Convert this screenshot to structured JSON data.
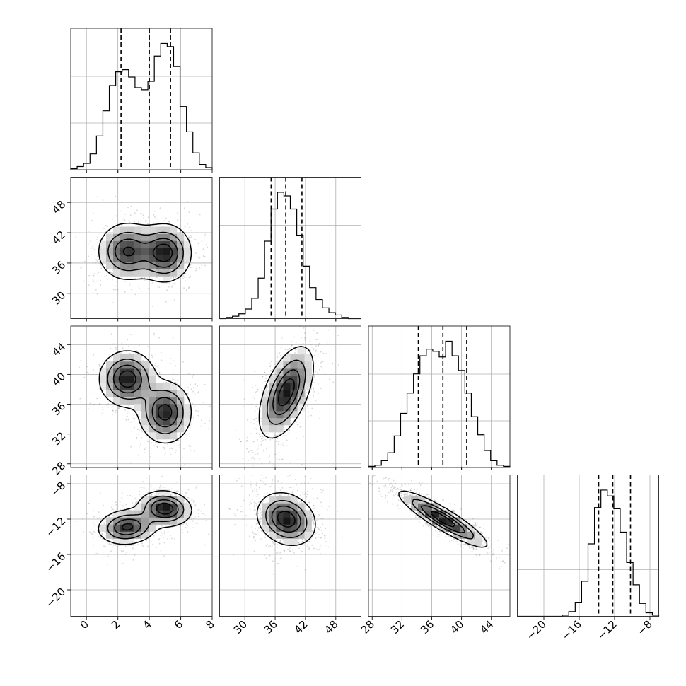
{
  "chart_data": {
    "type": "corner",
    "title": "",
    "colors": {
      "hist": "#000000",
      "scatter": "#8c8c8c",
      "contour": "#000000",
      "grid": "#b0b0b0",
      "axis": "#222222"
    },
    "grid": true,
    "params": [
      {
        "index": 0,
        "range": [
          -1,
          8
        ],
        "ticks": [
          0,
          2,
          4,
          6,
          8
        ],
        "tick_labels": [
          "0",
          "2",
          "4",
          "6",
          "8"
        ],
        "quantiles": [
          2.2,
          4.0,
          5.35
        ],
        "modes": [
          [
            2.6,
            0.9
          ],
          [
            5.0,
            0.8
          ]
        ]
      },
      {
        "index": 1,
        "range": [
          25,
          53
        ],
        "ticks": [
          30,
          36,
          42,
          48
        ],
        "tick_labels": [
          "30",
          "36",
          "42",
          "48"
        ],
        "quantiles": [
          35.2,
          38.1,
          41.3
        ],
        "modes": [
          [
            38.1,
            2.8
          ]
        ]
      },
      {
        "index": 2,
        "range": [
          27.5,
          46.5
        ],
        "ticks": [
          28,
          32,
          36,
          40,
          44
        ],
        "tick_labels": [
          "28",
          "32",
          "36",
          "40",
          "44"
        ],
        "quantiles": [
          34.2,
          37.5,
          40.7
        ],
        "modes": [
          [
            37.4,
            3.0
          ]
        ]
      },
      {
        "index": 3,
        "range": [
          -23,
          -7
        ],
        "ticks": [
          -20,
          -16,
          -12,
          -8
        ],
        "tick_labels": [
          "−20",
          "−16",
          "−12",
          "−8"
        ],
        "quantiles": [
          -13.8,
          -12.2,
          -10.2
        ],
        "modes": [
          [
            -12.0,
            1.6
          ]
        ]
      }
    ],
    "histograms": [
      {
        "param": 0,
        "bins": 22,
        "values": [
          0.01,
          0.03,
          0.06,
          0.15,
          0.32,
          0.56,
          0.8,
          0.93,
          0.95,
          0.88,
          0.78,
          0.76,
          0.84,
          1.08,
          1.2,
          1.17,
          0.98,
          0.6,
          0.36,
          0.16,
          0.05,
          0.02
        ]
      },
      {
        "param": 1,
        "bins": 22,
        "values": [
          0.0,
          0.01,
          0.02,
          0.04,
          0.08,
          0.17,
          0.34,
          0.65,
          0.92,
          1.06,
          1.03,
          0.92,
          0.7,
          0.44,
          0.26,
          0.16,
          0.09,
          0.05,
          0.03,
          0.01,
          0.0,
          0.0
        ]
      },
      {
        "param": 2,
        "bins": 22,
        "values": [
          0.01,
          0.02,
          0.06,
          0.13,
          0.28,
          0.48,
          0.66,
          0.83,
          0.99,
          1.05,
          1.03,
          0.98,
          1.12,
          0.99,
          0.86,
          0.66,
          0.45,
          0.29,
          0.15,
          0.06,
          0.02,
          0.01
        ]
      },
      {
        "param": 3,
        "bins": 22,
        "values": [
          0.0,
          0.0,
          0.0,
          0.0,
          0.0,
          0.0,
          0.0,
          0.01,
          0.04,
          0.12,
          0.3,
          0.62,
          0.93,
          1.08,
          1.03,
          0.92,
          0.72,
          0.46,
          0.27,
          0.11,
          0.03,
          0.01
        ]
      }
    ],
    "pairs": [
      {
        "x": 0,
        "y": 1,
        "clusters": [
          {
            "mx": 2.6,
            "my": 38.3,
            "sx": 0.95,
            "sy": 2.9,
            "rho": 0.0,
            "w": 0.5
          },
          {
            "mx": 5.0,
            "my": 38.0,
            "sx": 0.85,
            "sy": 2.9,
            "rho": 0.0,
            "w": 0.5
          }
        ]
      },
      {
        "x": 0,
        "y": 2,
        "clusters": [
          {
            "mx": 2.6,
            "my": 39.4,
            "sx": 0.9,
            "sy": 1.9,
            "rho": 0.0,
            "w": 0.5
          },
          {
            "mx": 5.0,
            "my": 34.9,
            "sx": 0.85,
            "sy": 2.1,
            "rho": 0.0,
            "w": 0.5
          }
        ]
      },
      {
        "x": 0,
        "y": 3,
        "clusters": [
          {
            "mx": 2.6,
            "my": -12.9,
            "sx": 0.95,
            "sy": 1.0,
            "rho": 0.1,
            "w": 0.5
          },
          {
            "mx": 5.0,
            "my": -10.8,
            "sx": 0.85,
            "sy": 1.0,
            "rho": -0.1,
            "w": 0.5
          }
        ]
      },
      {
        "x": 1,
        "y": 2,
        "clusters": [
          {
            "mx": 38.2,
            "my": 37.6,
            "sx": 2.7,
            "sy": 3.1,
            "rho": 0.55,
            "w": 1.0
          }
        ]
      },
      {
        "x": 1,
        "y": 3,
        "clusters": [
          {
            "mx": 38.2,
            "my": -12.0,
            "sx": 2.9,
            "sy": 1.5,
            "rho": -0.2,
            "w": 1.0
          }
        ]
      },
      {
        "x": 2,
        "y": 3,
        "clusters": [
          {
            "mx": 37.5,
            "my": -12.0,
            "sx": 3.0,
            "sy": 1.6,
            "rho": -0.9,
            "w": 1.0
          }
        ]
      }
    ]
  }
}
